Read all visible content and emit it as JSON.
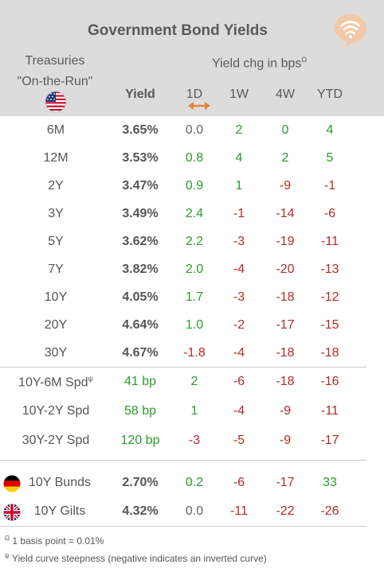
{
  "header": {
    "title": "Government Bond Yields",
    "treasuries_line1": "Treasuries",
    "treasuries_line2": "\"On-the-Run\"",
    "yield_chg_label": "Yield chg in bps",
    "yield_chg_sup": "Ω",
    "col_yield": "Yield",
    "col_1d": "1D",
    "col_1w": "1W",
    "col_4w": "4W",
    "col_ytd": "YTD"
  },
  "colors": {
    "header_bg": "#dcdcdc",
    "positive": "#2e9a2e",
    "negative": "#b52a2a",
    "accent": "#e8833a"
  },
  "icons": {
    "logo": "signal-bubble-icon",
    "us_flag": "us-flag-icon",
    "de_flag": "germany-flag-icon",
    "uk_flag": "uk-flag-icon",
    "arrow": "double-arrow-icon"
  },
  "treasuries": [
    {
      "label": "6M",
      "yield": "3.65%",
      "d1": "0.0",
      "w1": "2",
      "w4": "0",
      "ytd": "4",
      "s": [
        "neu",
        "pos",
        "pos",
        "pos"
      ]
    },
    {
      "label": "12M",
      "yield": "3.53%",
      "d1": "0.8",
      "w1": "4",
      "w4": "2",
      "ytd": "5",
      "s": [
        "pos",
        "pos",
        "pos",
        "pos"
      ]
    },
    {
      "label": "2Y",
      "yield": "3.47%",
      "d1": "0.9",
      "w1": "1",
      "w4": "-9",
      "ytd": "-1",
      "s": [
        "pos",
        "pos",
        "neg",
        "neg"
      ]
    },
    {
      "label": "3Y",
      "yield": "3.49%",
      "d1": "2.4",
      "w1": "-1",
      "w4": "-14",
      "ytd": "-6",
      "s": [
        "pos",
        "neg",
        "neg",
        "neg"
      ]
    },
    {
      "label": "5Y",
      "yield": "3.62%",
      "d1": "2.2",
      "w1": "-3",
      "w4": "-19",
      "ytd": "-11",
      "s": [
        "pos",
        "neg",
        "neg",
        "neg"
      ]
    },
    {
      "label": "7Y",
      "yield": "3.82%",
      "d1": "2.0",
      "w1": "-4",
      "w4": "-20",
      "ytd": "-13",
      "s": [
        "pos",
        "neg",
        "neg",
        "neg"
      ]
    },
    {
      "label": "10Y",
      "yield": "4.05%",
      "d1": "1.7",
      "w1": "-3",
      "w4": "-18",
      "ytd": "-12",
      "s": [
        "pos",
        "neg",
        "neg",
        "neg"
      ]
    },
    {
      "label": "20Y",
      "yield": "4.64%",
      "d1": "1.0",
      "w1": "-2",
      "w4": "-17",
      "ytd": "-15",
      "s": [
        "pos",
        "neg",
        "neg",
        "neg"
      ]
    },
    {
      "label": "30Y",
      "yield": "4.67%",
      "d1": "-1.8",
      "w1": "-4",
      "w4": "-18",
      "ytd": "-18",
      "s": [
        "neg",
        "neg",
        "neg",
        "neg"
      ]
    }
  ],
  "spreads": [
    {
      "label": "10Y-6M Spd",
      "sup": "ψ",
      "yield": "41 bp",
      "d1": "2",
      "w1": "-6",
      "w4": "-18",
      "ytd": "-16",
      "s": [
        "pos",
        "neg",
        "neg",
        "neg"
      ]
    },
    {
      "label": "10Y-2Y Spd",
      "sup": "",
      "yield": "58 bp",
      "d1": "1",
      "w1": "-4",
      "w4": "-9",
      "ytd": "-11",
      "s": [
        "pos",
        "neg",
        "neg",
        "neg"
      ]
    },
    {
      "label": "30Y-2Y Spd",
      "sup": "",
      "yield": "120 bp",
      "d1": "-3",
      "w1": "-5",
      "w4": "-9",
      "ytd": "-17",
      "s": [
        "neg",
        "neg",
        "neg",
        "neg"
      ]
    }
  ],
  "foreign": [
    {
      "label": "10Y Bunds",
      "flag": "de",
      "yield": "2.70%",
      "d1": "0.2",
      "w1": "-6",
      "w4": "-17",
      "ytd": "33",
      "s": [
        "pos",
        "neg",
        "neg",
        "pos"
      ]
    },
    {
      "label": "10Y Gilts",
      "flag": "uk",
      "yield": "4.32%",
      "d1": "0.0",
      "w1": "-11",
      "w4": "-22",
      "ytd": "-26",
      "s": [
        "neu",
        "neg",
        "neg",
        "neg"
      ]
    }
  ],
  "footnotes": {
    "note1_sup": "Ω",
    "note1": "1 basis point = 0.01%",
    "note2_sup": "ψ",
    "note2": "Yield curve steepness (negative indicates an inverted curve)"
  }
}
